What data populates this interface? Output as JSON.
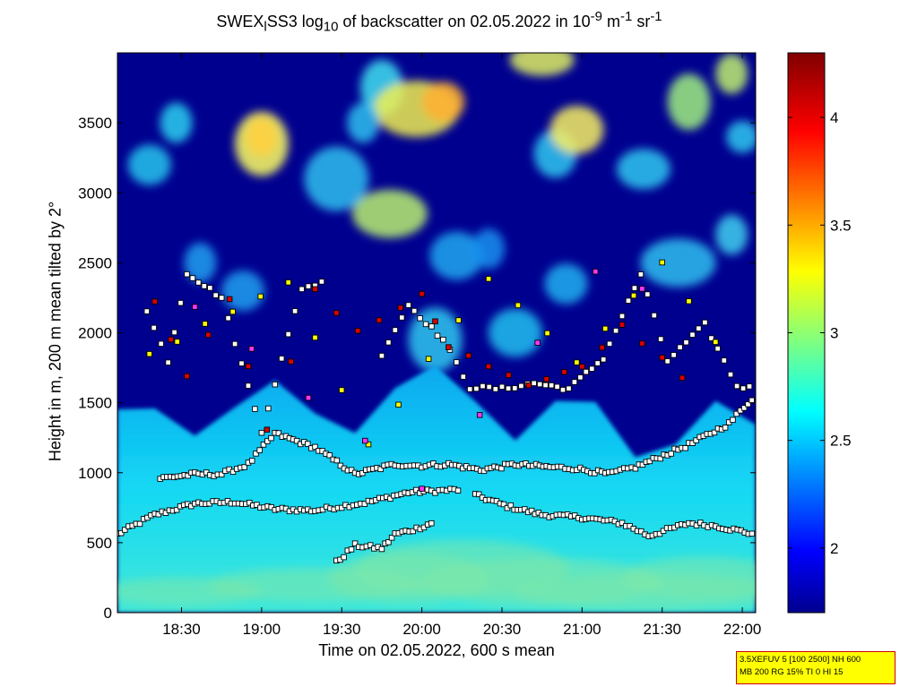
{
  "title_parts": {
    "prefix": "SWEX",
    "sub1": "l",
    "mid": "SS3 log",
    "sub2": "10",
    "after": " of backscatter on 02.05.2022 in 10",
    "sup1": "-9",
    "unit1": " m",
    "sup2": "-1",
    "unit2": " sr",
    "sup3": "-1"
  },
  "colorbar": {
    "range": [
      1.7,
      4.3
    ],
    "ticks": [
      "2",
      "2.5",
      "3",
      "3.5",
      "4"
    ],
    "tick_values": [
      2,
      2.5,
      3,
      3.5,
      4
    ],
    "colormap": "jet"
  },
  "infobox": {
    "line1": "3.5XEFUV 5 [100 2500] NH 600",
    "line2": "MB 200 RG 15% TI 0 HI 15"
  },
  "colors": {
    "background_low": "#00008f",
    "near_surface": "#18e0f0",
    "marker_white": "#ffffff",
    "marker_yellow": "#ffff00",
    "marker_red": "#dd0000",
    "marker_magenta": "#ff33ff",
    "marker_edge": "#000000"
  },
  "chart_data": {
    "type": "heatmap",
    "title": "SWEXlSS3 log10 of backscatter on 02.05.2022 in 10-9 m-1 sr-1",
    "xlabel": "Time on 02.05.2022, 600 s mean",
    "ylabel": "Height in m, 200 m mean tilted by 2°",
    "x_tick_labels": [
      "18:30",
      "19:00",
      "19:30",
      "20:00",
      "20:30",
      "21:00",
      "21:30",
      "22:00"
    ],
    "x_tick_values_min": [
      1110,
      1140,
      1170,
      1200,
      1230,
      1260,
      1290,
      1320
    ],
    "xlim_min": [
      1086,
      1325
    ],
    "y_tick_labels": [
      "0",
      "500",
      "1000",
      "1500",
      "2000",
      "2500",
      "3000",
      "3500"
    ],
    "y_tick_values": [
      0,
      500,
      1000,
      1500,
      2000,
      2500,
      3000,
      3500
    ],
    "ylim": [
      0,
      4000
    ],
    "value_range": [
      1.7,
      4.3
    ],
    "boundary_layer_levels": [
      {
        "time_min": 1086,
        "height": 560
      },
      {
        "time_min": 1100,
        "height": 700
      },
      {
        "time_min": 1115,
        "height": 760
      },
      {
        "time_min": 1130,
        "height": 790
      },
      {
        "time_min": 1145,
        "height": 760
      },
      {
        "time_min": 1160,
        "height": 740
      },
      {
        "time_min": 1175,
        "height": 780
      },
      {
        "time_min": 1190,
        "height": 850
      },
      {
        "time_min": 1205,
        "height": 880
      },
      {
        "time_min": 1220,
        "height": 900
      },
      {
        "time_min": 1235,
        "height": 700
      },
      {
        "time_min": 1250,
        "height": 690
      },
      {
        "time_min": 1265,
        "height": 660
      },
      {
        "time_min": 1280,
        "height": 560
      },
      {
        "time_min": 1295,
        "height": 620
      },
      {
        "time_min": 1310,
        "height": 640
      },
      {
        "time_min": 1325,
        "height": 560
      }
    ]
  }
}
